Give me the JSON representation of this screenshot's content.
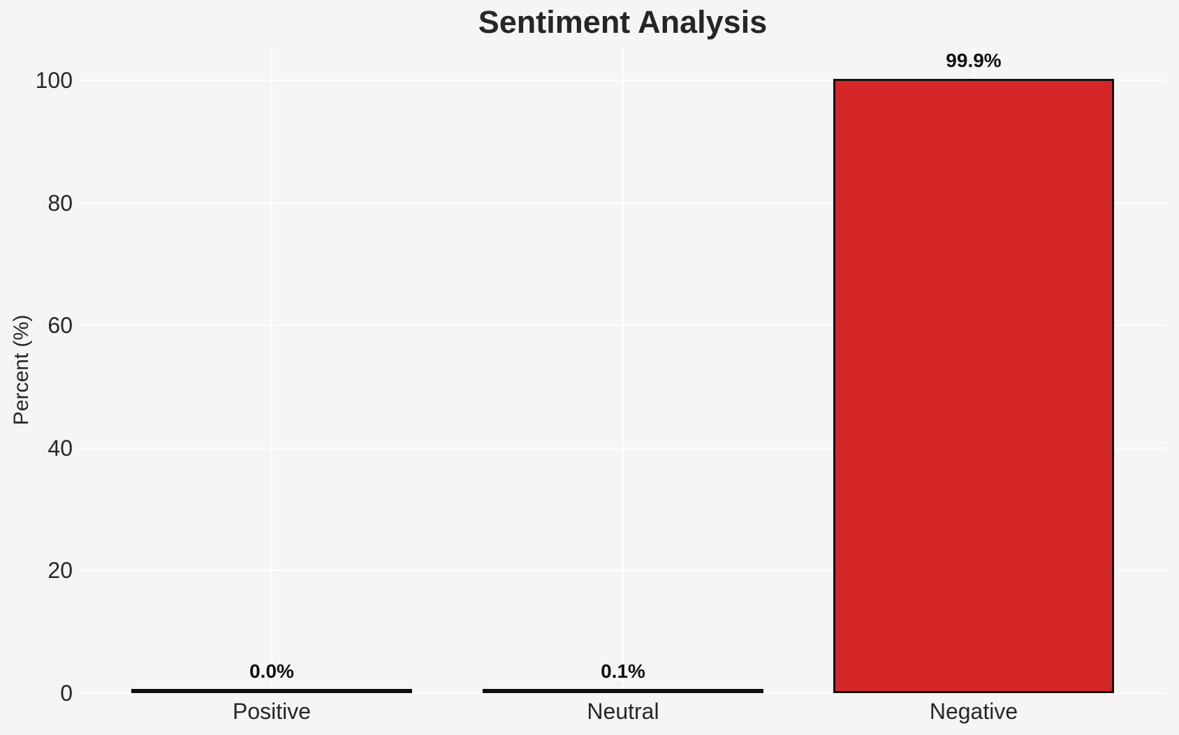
{
  "chart_data": {
    "type": "bar",
    "title": "Sentiment Analysis",
    "xlabel": "",
    "ylabel": "Percent (%)",
    "categories": [
      "Positive",
      "Neutral",
      "Negative"
    ],
    "values": [
      0.0,
      0.1,
      99.9
    ],
    "value_labels": [
      "0.0%",
      "0.1%",
      "99.9%"
    ],
    "yticks": [
      0,
      20,
      40,
      60,
      80,
      100
    ],
    "ylim": [
      0,
      105.4
    ],
    "grid": true,
    "legend_position": "none",
    "bar_width_fraction": 0.8,
    "colors": {
      "bar_fill": "#d62728",
      "bar_edge": "#0f0f0f",
      "background": "#f5f5f6",
      "grid_line": "#ffffff",
      "text": "#262626"
    }
  }
}
